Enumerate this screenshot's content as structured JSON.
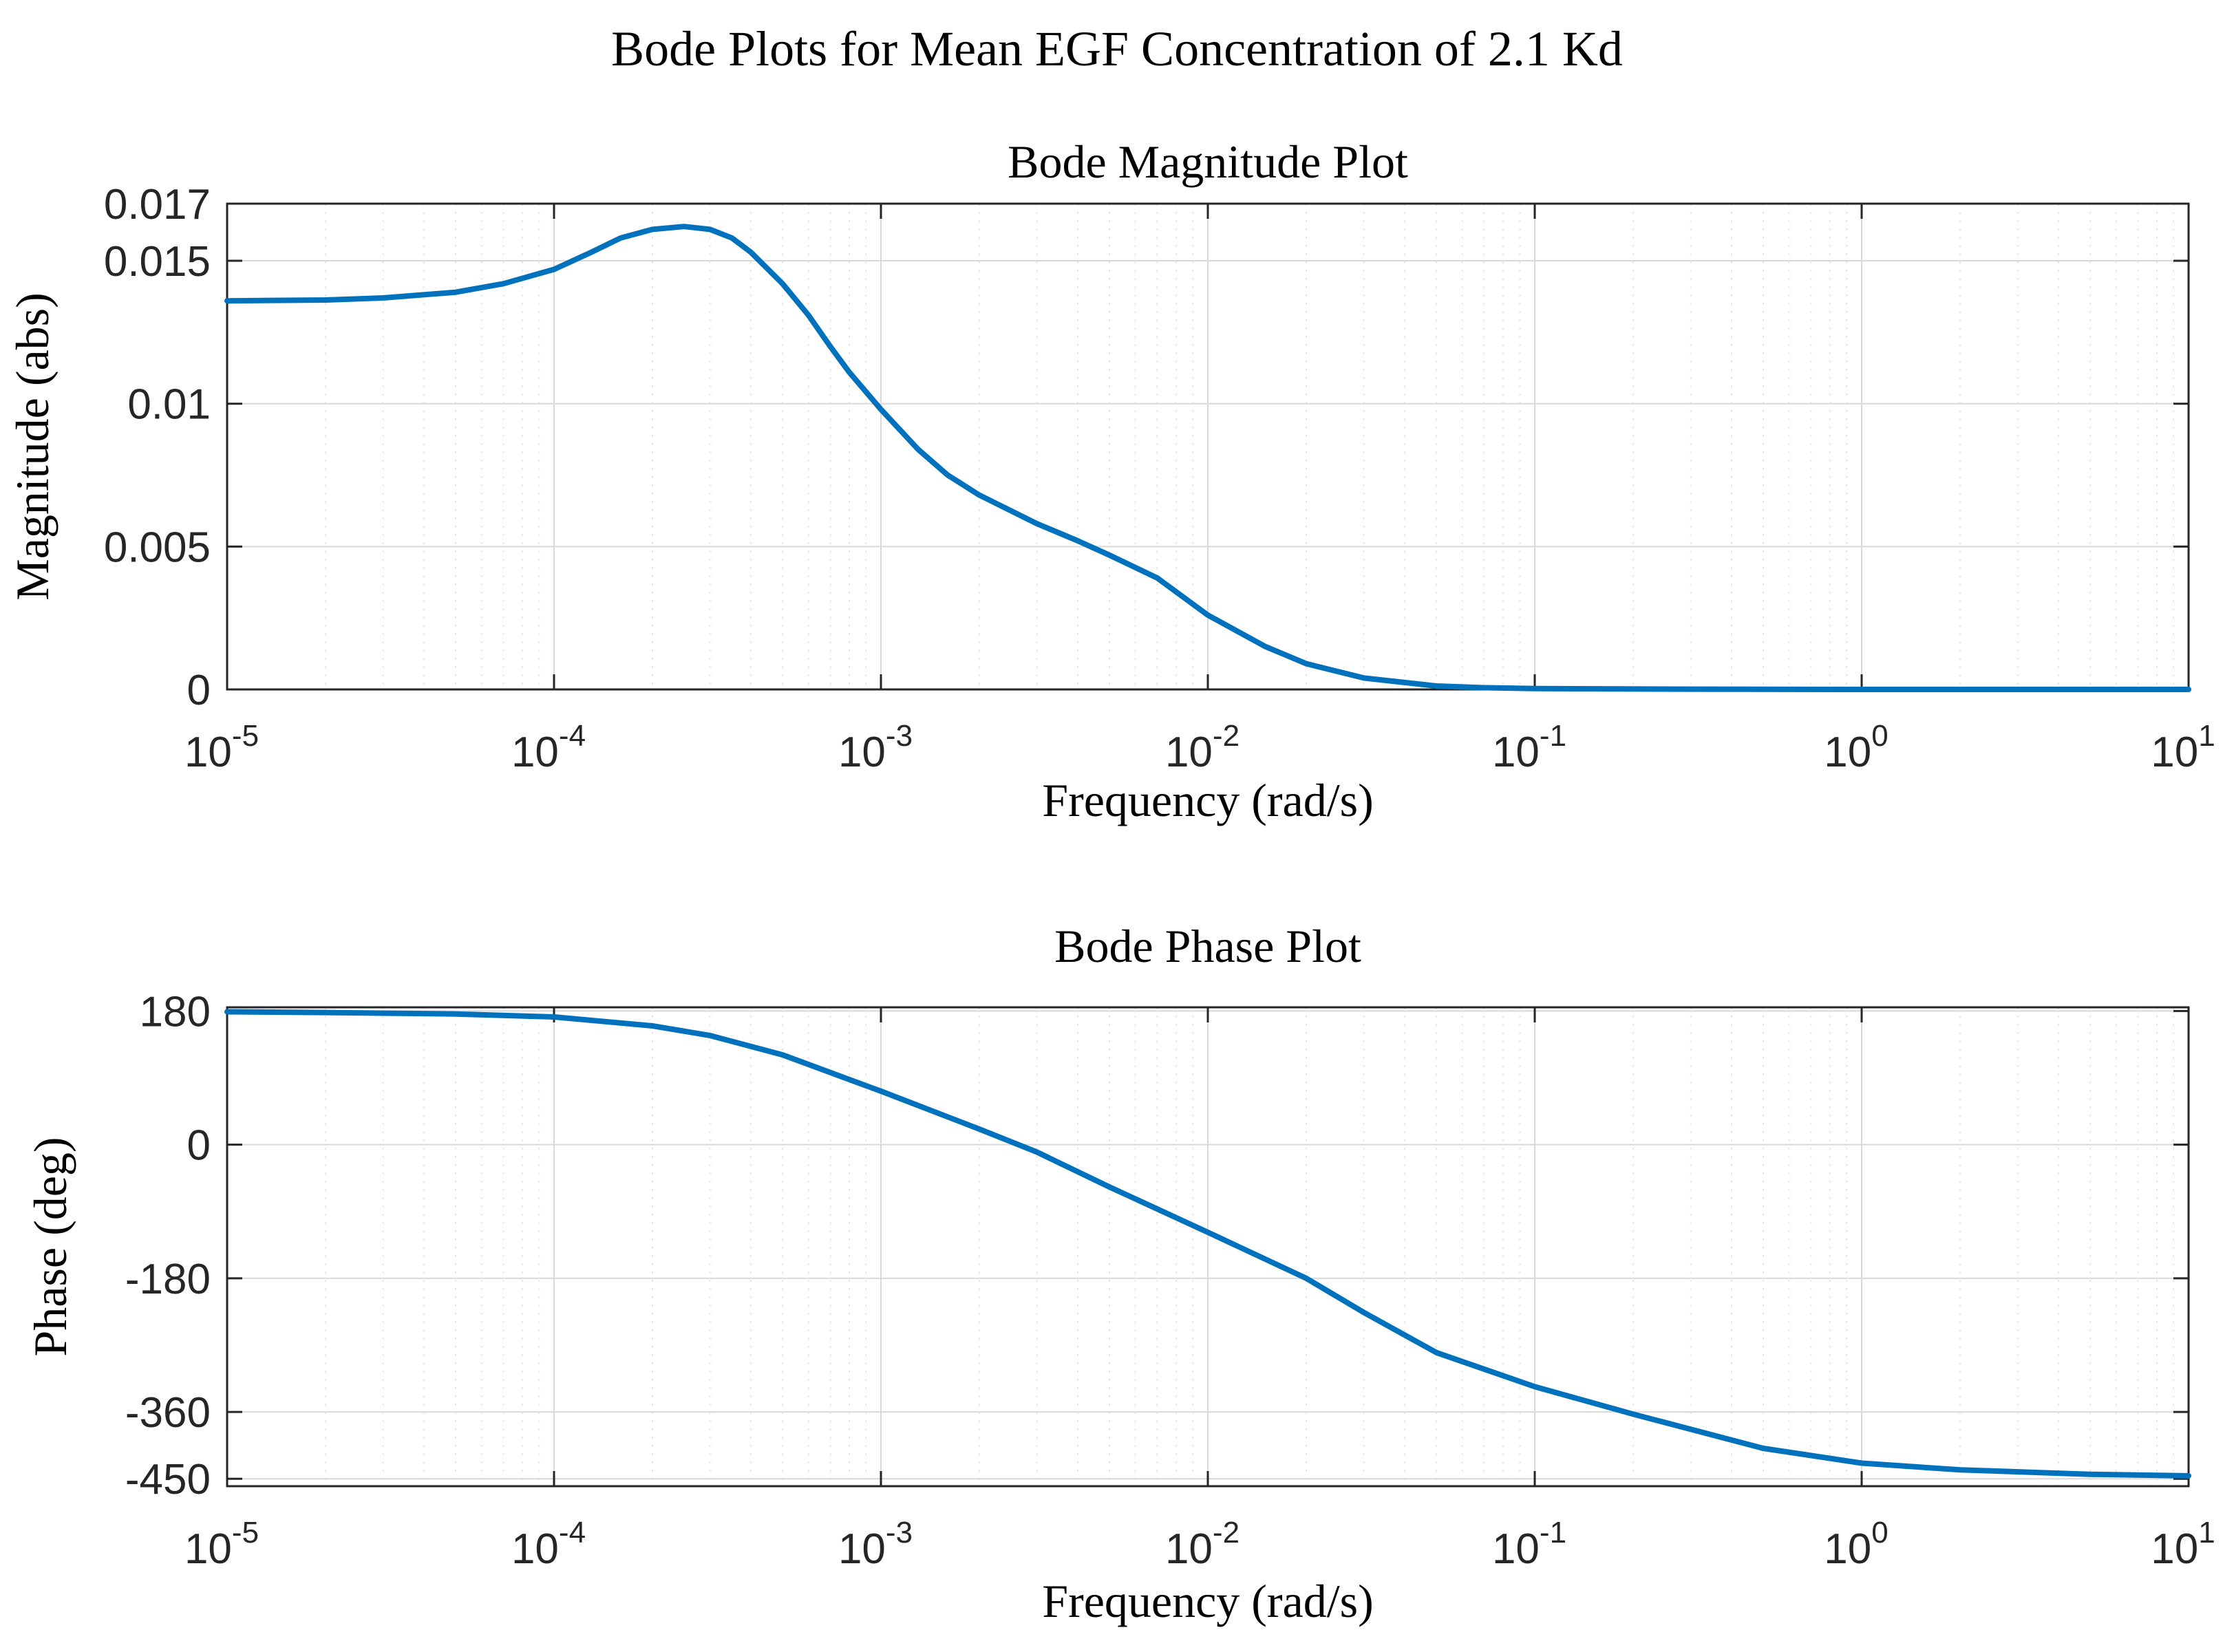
{
  "figure": {
    "suptitle": "Bode Plots for Mean EGF Concentration of 2.1 Kd"
  },
  "colors": {
    "line": "#0072BD",
    "grid_major": "#d9d9d9",
    "grid_minor": "#e8e8e8",
    "axes": "#262626",
    "text": "#000000"
  },
  "chart_data": [
    {
      "type": "line",
      "title": "Bode Magnitude Plot",
      "xlabel": "Frequency (rad/s)",
      "ylabel": "Magnitude (abs)",
      "xscale": "log",
      "xlim": [
        1e-05,
        10
      ],
      "ylim": [
        0,
        0.017
      ],
      "grid": true,
      "minor_grid": true,
      "x_ticks": [
        {
          "value": 1e-05,
          "base": "10",
          "exp": "-5"
        },
        {
          "value": 0.0001,
          "base": "10",
          "exp": "-4"
        },
        {
          "value": 0.001,
          "base": "10",
          "exp": "-3"
        },
        {
          "value": 0.01,
          "base": "10",
          "exp": "-2"
        },
        {
          "value": 0.1,
          "base": "10",
          "exp": "-1"
        },
        {
          "value": 1,
          "base": "10",
          "exp": "0"
        },
        {
          "value": 10,
          "base": "10",
          "exp": "1"
        }
      ],
      "y_ticks": [
        {
          "value": 0,
          "label": "0"
        },
        {
          "value": 0.005,
          "label": "0.005"
        },
        {
          "value": 0.01,
          "label": "0.01"
        },
        {
          "value": 0.015,
          "label": "0.015"
        },
        {
          "value": 0.017,
          "label": "0.017"
        }
      ],
      "series": [
        {
          "name": "Magnitude",
          "x": [
            1e-05,
            2e-05,
            3e-05,
            5e-05,
            7e-05,
            0.0001,
            0.00013,
            0.00016,
            0.0002,
            0.00025,
            0.0003,
            0.00035,
            0.0004,
            0.0005,
            0.0006,
            0.0007,
            0.0008,
            0.001,
            0.0013,
            0.0016,
            0.002,
            0.003,
            0.004,
            0.005,
            0.007,
            0.01,
            0.015,
            0.02,
            0.03,
            0.05,
            0.07,
            0.1,
            0.3,
            1,
            3,
            10
          ],
          "y": [
            0.0136,
            0.01363,
            0.0137,
            0.0139,
            0.0142,
            0.0147,
            0.0153,
            0.0158,
            0.0161,
            0.0162,
            0.0161,
            0.0158,
            0.0153,
            0.0142,
            0.0131,
            0.012,
            0.0111,
            0.0098,
            0.0084,
            0.0075,
            0.0068,
            0.0058,
            0.0052,
            0.0047,
            0.0039,
            0.0026,
            0.0015,
            0.0009,
            0.0004,
            0.00012,
            6e-05,
            3e-05,
            1e-05,
            0,
            0,
            0
          ]
        }
      ]
    },
    {
      "type": "line",
      "title": "Bode Phase Plot",
      "xlabel": "Frequency (rad/s)",
      "ylabel": "Phase (deg)",
      "xscale": "log",
      "xlim": [
        1e-05,
        10
      ],
      "ylim": [
        -460,
        185
      ],
      "grid": true,
      "minor_grid": true,
      "x_ticks": [
        {
          "value": 1e-05,
          "base": "10",
          "exp": "-5"
        },
        {
          "value": 0.0001,
          "base": "10",
          "exp": "-4"
        },
        {
          "value": 0.001,
          "base": "10",
          "exp": "-3"
        },
        {
          "value": 0.01,
          "base": "10",
          "exp": "-2"
        },
        {
          "value": 0.1,
          "base": "10",
          "exp": "-1"
        },
        {
          "value": 1,
          "base": "10",
          "exp": "0"
        },
        {
          "value": 10,
          "base": "10",
          "exp": "1"
        }
      ],
      "y_ticks": [
        {
          "value": 180,
          "label": "180"
        },
        {
          "value": 0,
          "label": "0"
        },
        {
          "value": -180,
          "label": "-180"
        },
        {
          "value": -360,
          "label": "-360"
        },
        {
          "value": -450,
          "label": "-450"
        }
      ],
      "series": [
        {
          "name": "Phase",
          "x": [
            1e-05,
            2e-05,
            5e-05,
            0.0001,
            0.0002,
            0.0003,
            0.0005,
            0.001,
            0.002,
            0.003,
            0.005,
            0.01,
            0.02,
            0.03,
            0.05,
            0.1,
            0.2,
            0.5,
            1,
            2,
            5,
            10
          ],
          "y": [
            179,
            178,
            176,
            172,
            160,
            147,
            121,
            72,
            21,
            -10,
            -57,
            -118,
            -180,
            -226,
            -280,
            -326,
            -363,
            -409,
            -429,
            -438,
            -444,
            -446
          ]
        }
      ]
    }
  ]
}
